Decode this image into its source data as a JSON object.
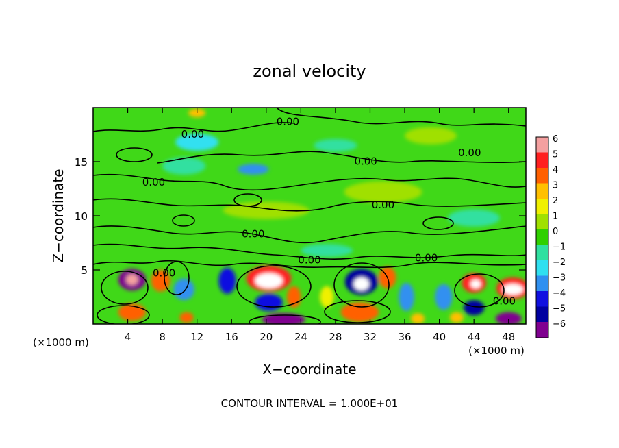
{
  "chart_data": {
    "type": "heatmap",
    "title": "zonal velocity",
    "xlabel": "X−coordinate",
    "ylabel": "Z−coordinate",
    "x_unit": "(×1000 m)",
    "x_unit_right": "(×1000 m)",
    "footer": "CONTOUR INTERVAL = 1.000E+01",
    "xlim": [
      0,
      50
    ],
    "ylim": [
      0,
      20
    ],
    "x_ticks": [
      4,
      8,
      12,
      16,
      20,
      24,
      28,
      32,
      36,
      40,
      44,
      48
    ],
    "y_ticks": [
      5,
      10,
      15
    ],
    "colorbar": {
      "levels": [
        6,
        5,
        4,
        3,
        2,
        1,
        0,
        -1,
        -2,
        -3,
        -4,
        -5,
        -6
      ],
      "labels": [
        "6",
        "5",
        "4",
        "3",
        "2",
        "1",
        "0",
        "−1",
        "−2",
        "−3",
        "−4",
        "−5",
        "−6"
      ],
      "colors": [
        "#f4a0a0",
        "#ff2020",
        "#ff6000",
        "#ffc000",
        "#f0f000",
        "#a0e000",
        "#30d000",
        "#30e0a0",
        "#30e0f0",
        "#3090f0",
        "#1010e0",
        "#0000a0",
        "#800090"
      ]
    },
    "contour_labels": [
      {
        "x": 22.5,
        "y": 18.4,
        "text": "0.00"
      },
      {
        "x": 11.5,
        "y": 17.2,
        "text": "0.00"
      },
      {
        "x": 43.5,
        "y": 15.5,
        "text": "0.00"
      },
      {
        "x": 31.5,
        "y": 14.7,
        "text": "0.00"
      },
      {
        "x": 7.0,
        "y": 12.8,
        "text": "0.00"
      },
      {
        "x": 33.5,
        "y": 10.7,
        "text": "0.00"
      },
      {
        "x": 18.5,
        "y": 8.0,
        "text": "0.00"
      },
      {
        "x": 25.0,
        "y": 5.6,
        "text": "0.00"
      },
      {
        "x": 38.5,
        "y": 5.8,
        "text": "0.00"
      },
      {
        "x": 8.2,
        "y": 4.4,
        "text": "0.00"
      },
      {
        "x": 47.5,
        "y": 1.8,
        "text": "0.00"
      }
    ],
    "features": [
      {
        "x": 4.5,
        "y": 4.1,
        "v": -6,
        "rx": 1.6,
        "ry": 1.0
      },
      {
        "x": 4.5,
        "y": 4.1,
        "v": 6,
        "rx": 0.7,
        "ry": 0.5
      },
      {
        "x": 7.8,
        "y": 4.0,
        "v": 4,
        "rx": 1.1,
        "ry": 1.0
      },
      {
        "x": 10.5,
        "y": 3.2,
        "v": -3,
        "rx": 1.2,
        "ry": 1.0
      },
      {
        "x": 4.5,
        "y": 1.1,
        "v": 4,
        "rx": 1.6,
        "ry": 0.8
      },
      {
        "x": 10.8,
        "y": 0.6,
        "v": 4,
        "rx": 0.8,
        "ry": 0.5
      },
      {
        "x": 15.5,
        "y": 4.0,
        "v": -4,
        "rx": 1.0,
        "ry": 1.2
      },
      {
        "x": 20.3,
        "y": 4.2,
        "v": 5,
        "rx": 2.6,
        "ry": 1.2
      },
      {
        "x": 20.3,
        "y": 4.0,
        "v": 6.5,
        "rx": 1.6,
        "ry": 0.7
      },
      {
        "x": 20.3,
        "y": 2.0,
        "v": -4,
        "rx": 1.6,
        "ry": 0.8
      },
      {
        "x": 23.2,
        "y": 2.5,
        "v": 4,
        "rx": 0.8,
        "ry": 1.0
      },
      {
        "x": 22.0,
        "y": 0.4,
        "v": -6,
        "rx": 2.5,
        "ry": 0.6
      },
      {
        "x": 27.0,
        "y": 2.5,
        "v": 2,
        "rx": 0.8,
        "ry": 1.0
      },
      {
        "x": 31.0,
        "y": 3.9,
        "v": -5,
        "rx": 1.9,
        "ry": 1.2
      },
      {
        "x": 31.0,
        "y": 3.7,
        "v": 6.5,
        "rx": 0.9,
        "ry": 0.6
      },
      {
        "x": 34.0,
        "y": 4.3,
        "v": 4,
        "rx": 1.0,
        "ry": 1.0
      },
      {
        "x": 30.8,
        "y": 1.1,
        "v": 4,
        "rx": 2.2,
        "ry": 0.9
      },
      {
        "x": 36.2,
        "y": 2.5,
        "v": -3,
        "rx": 0.9,
        "ry": 1.3
      },
      {
        "x": 37.5,
        "y": 0.5,
        "v": 3,
        "rx": 0.8,
        "ry": 0.5
      },
      {
        "x": 40.5,
        "y": 2.5,
        "v": -3,
        "rx": 1.0,
        "ry": 1.2
      },
      {
        "x": 44.0,
        "y": 3.8,
        "v": 5,
        "rx": 1.4,
        "ry": 0.9
      },
      {
        "x": 44.2,
        "y": 3.7,
        "v": 6.5,
        "rx": 0.6,
        "ry": 0.4
      },
      {
        "x": 44.0,
        "y": 1.5,
        "v": -5,
        "rx": 1.2,
        "ry": 0.7
      },
      {
        "x": 48.5,
        "y": 3.3,
        "v": 5,
        "rx": 1.9,
        "ry": 1.0
      },
      {
        "x": 48.5,
        "y": 3.2,
        "v": 6.5,
        "rx": 1.2,
        "ry": 0.5
      },
      {
        "x": 48.0,
        "y": 0.5,
        "v": -6,
        "rx": 1.5,
        "ry": 0.6
      },
      {
        "x": 42.0,
        "y": 0.6,
        "v": 3,
        "rx": 0.8,
        "ry": 0.5
      },
      {
        "x": 12.0,
        "y": 16.8,
        "v": -2,
        "rx": 2.5,
        "ry": 0.8
      },
      {
        "x": 18.5,
        "y": 14.3,
        "v": -3,
        "rx": 1.8,
        "ry": 0.5
      },
      {
        "x": 10.5,
        "y": 14.6,
        "v": -1,
        "rx": 2.5,
        "ry": 0.8
      },
      {
        "x": 33.5,
        "y": 12.2,
        "v": 1,
        "rx": 4.5,
        "ry": 1.0
      },
      {
        "x": 20.0,
        "y": 10.5,
        "v": 1,
        "rx": 5.0,
        "ry": 0.8
      },
      {
        "x": 39.0,
        "y": 17.4,
        "v": 1,
        "rx": 3.0,
        "ry": 0.8
      },
      {
        "x": 44.0,
        "y": 9.8,
        "v": -1,
        "rx": 3.0,
        "ry": 0.8
      },
      {
        "x": 27.0,
        "y": 6.8,
        "v": -1,
        "rx": 3.0,
        "ry": 0.6
      },
      {
        "x": 12.0,
        "y": 19.5,
        "v": 3,
        "rx": 1.0,
        "ry": 0.4
      },
      {
        "x": 28.0,
        "y": 16.5,
        "v": -1,
        "rx": 2.5,
        "ry": 0.6
      }
    ]
  }
}
